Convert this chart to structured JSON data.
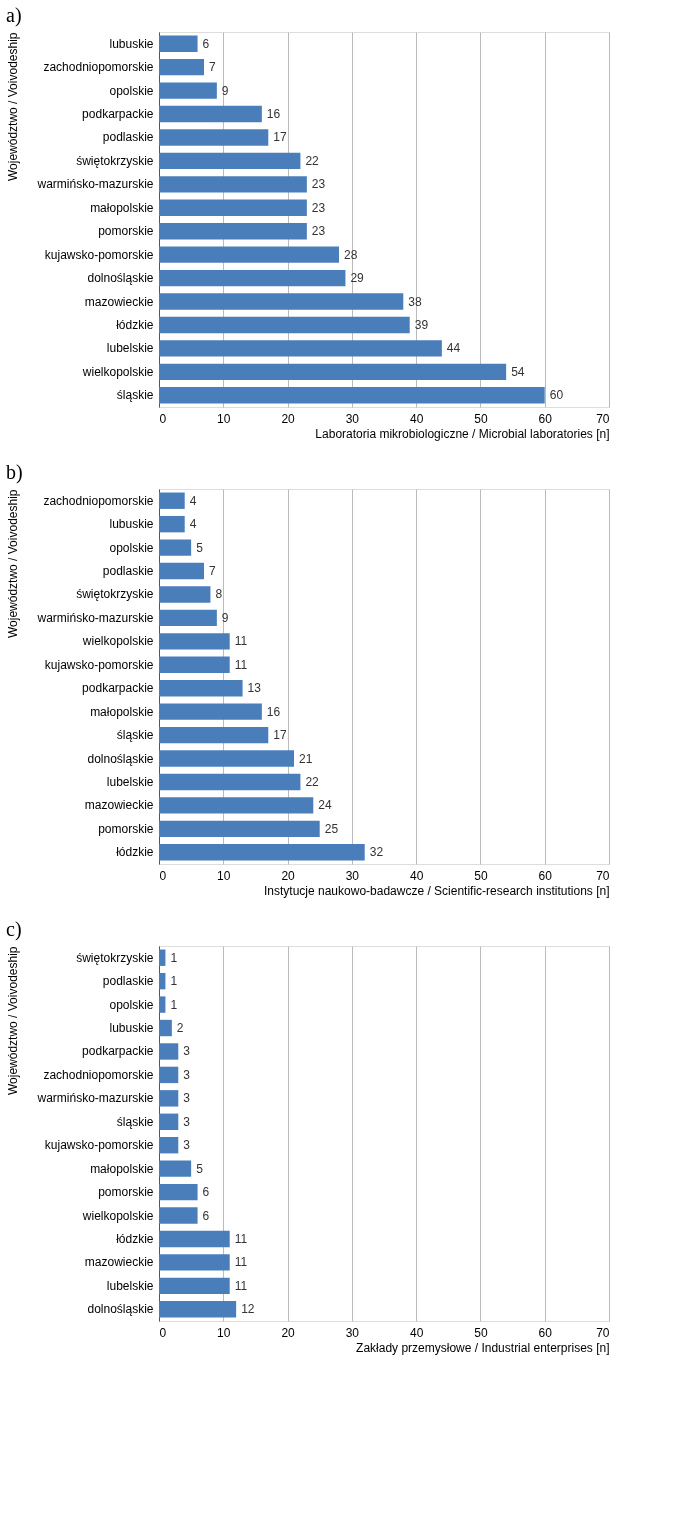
{
  "chart_data": [
    {
      "type": "bar",
      "orientation": "horizontal",
      "title": "a)",
      "xlabel": "Laboratoria mikrobiologiczne / Microbial laboratories [n]",
      "ylabel": "Województwo / Voivodeship",
      "categories": [
        "lubuskie",
        "zachodniopomorskie",
        "opolskie",
        "podkarpackie",
        "podlaskie",
        "świętokrzyskie",
        "warmińsko-mazurskie",
        "małopolskie",
        "pomorskie",
        "kujawsko-pomorskie",
        "dolnośląskie",
        "mazowieckie",
        "łódzkie",
        "lubelskie",
        "wielkopolskie",
        "śląskie"
      ],
      "values": [
        6,
        7,
        9,
        16,
        17,
        22,
        23,
        23,
        23,
        28,
        29,
        38,
        39,
        44,
        54,
        60
      ],
      "color": "#4a7ebb",
      "xlim": [
        0,
        70
      ],
      "xticks": [
        0,
        10,
        20,
        30,
        40,
        50,
        60,
        70
      ],
      "grid": "x",
      "data_labels": true
    },
    {
      "type": "bar",
      "orientation": "horizontal",
      "title": "b)",
      "xlabel": "Instytucje naukowo-badawcze / Scientific-research institutions [n]",
      "ylabel": "Województwo / Voivodeship",
      "categories": [
        "zachodniopomorskie",
        "lubuskie",
        "opolskie",
        "podlaskie",
        "świętokrzyskie",
        "warmińsko-mazurskie",
        "wielkopolskie",
        "kujawsko-pomorskie",
        "podkarpackie",
        "małopolskie",
        "śląskie",
        "dolnośląskie",
        "lubelskie",
        "mazowieckie",
        "pomorskie",
        "łódzkie"
      ],
      "values": [
        4,
        4,
        5,
        7,
        8,
        9,
        11,
        11,
        13,
        16,
        17,
        21,
        22,
        24,
        25,
        32
      ],
      "color": "#4a7ebb",
      "xlim": [
        0,
        70
      ],
      "xticks": [
        0,
        10,
        20,
        30,
        40,
        50,
        60,
        70
      ],
      "grid": "x",
      "data_labels": true
    },
    {
      "type": "bar",
      "orientation": "horizontal",
      "title": "c)",
      "xlabel": "Zakłady przemysłowe / Industrial enterprises [n]",
      "ylabel": "Województwo / Voivodeship",
      "categories": [
        "świętokrzyskie",
        "podlaskie",
        "opolskie",
        "lubuskie",
        "podkarpackie",
        "zachodniopomorskie",
        "warmińsko-mazurskie",
        "śląskie",
        "kujawsko-pomorskie",
        "małopolskie",
        "pomorskie",
        "wielkopolskie",
        "łódzkie",
        "mazowieckie",
        "lubelskie",
        "dolnośląskie"
      ],
      "values": [
        1,
        1,
        1,
        2,
        3,
        3,
        3,
        3,
        3,
        5,
        6,
        6,
        11,
        11,
        11,
        12
      ],
      "color": "#4a7ebb",
      "xlim": [
        0,
        70
      ],
      "xticks": [
        0,
        10,
        20,
        30,
        40,
        50,
        60,
        70
      ],
      "grid": "x",
      "data_labels": true
    }
  ]
}
